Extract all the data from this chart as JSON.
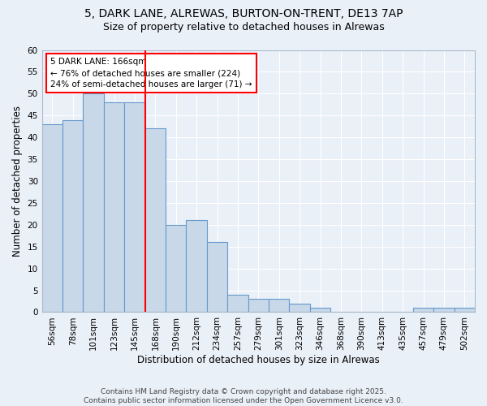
{
  "title1": "5, DARK LANE, ALREWAS, BURTON-ON-TRENT, DE13 7AP",
  "title2": "Size of property relative to detached houses in Alrewas",
  "xlabel": "Distribution of detached houses by size in Alrewas",
  "ylabel": "Number of detached properties",
  "categories": [
    "56sqm",
    "78sqm",
    "101sqm",
    "123sqm",
    "145sqm",
    "168sqm",
    "190sqm",
    "212sqm",
    "234sqm",
    "257sqm",
    "279sqm",
    "301sqm",
    "323sqm",
    "346sqm",
    "368sqm",
    "390sqm",
    "413sqm",
    "435sqm",
    "457sqm",
    "479sqm",
    "502sqm"
  ],
  "values": [
    43,
    44,
    50,
    48,
    48,
    42,
    20,
    21,
    16,
    4,
    3,
    3,
    2,
    1,
    0,
    0,
    0,
    0,
    1,
    1,
    1
  ],
  "bar_color": "#c8d8e8",
  "bar_edge_color": "#6699cc",
  "red_line_index": 5,
  "annotation_text": "5 DARK LANE: 166sqm\n← 76% of detached houses are smaller (224)\n24% of semi-detached houses are larger (71) →",
  "annotation_box_color": "white",
  "annotation_box_edge_color": "red",
  "red_line_color": "red",
  "ylim": [
    0,
    60
  ],
  "yticks": [
    0,
    5,
    10,
    15,
    20,
    25,
    30,
    35,
    40,
    45,
    50,
    55,
    60
  ],
  "background_color": "#eaf0f8",
  "grid_color": "white",
  "footer": "Contains HM Land Registry data © Crown copyright and database right 2025.\nContains public sector information licensed under the Open Government Licence v3.0.",
  "title_fontsize": 10,
  "subtitle_fontsize": 9,
  "axis_label_fontsize": 8.5,
  "tick_fontsize": 7.5,
  "footer_fontsize": 6.5
}
